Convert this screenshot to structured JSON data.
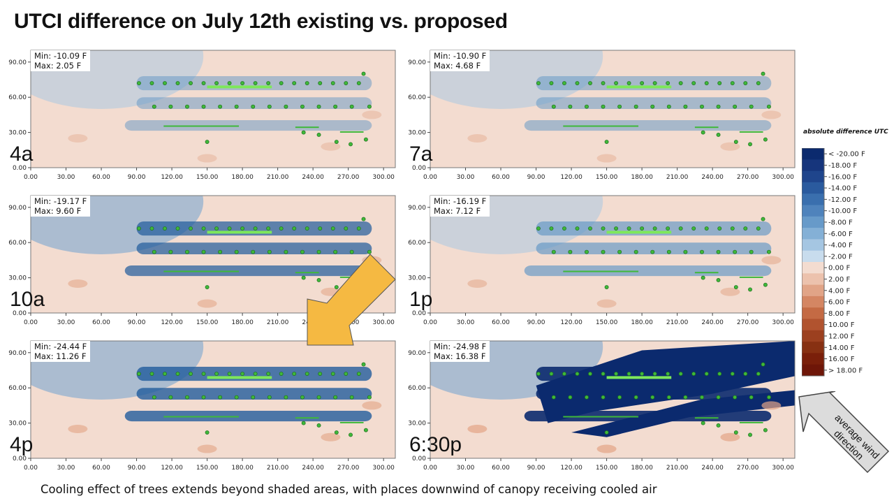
{
  "title": "UTCI difference on July 12th existing vs. proposed",
  "caption": "Cooling effect of trees extends beyond shaded areas, with places downwind of canopy receiving cooled air",
  "legend": {
    "title": "absolute difference UTC",
    "labels": [
      "< -20.00 F",
      "-18.00 F",
      "-16.00 F",
      "-14.00 F",
      "-12.00 F",
      "-10.00 F",
      "-8.00 F",
      "-6.00 F",
      "-4.00 F",
      "-2.00 F",
      "0.00 F",
      "2.00 F",
      "4.00 F",
      "6.00 F",
      "8.00 F",
      "10.00 F",
      "12.00 F",
      "14.00 F",
      "16.00 F",
      "> 18.00 F"
    ]
  },
  "wind_label": "average wind direction",
  "colors": {
    "cool_max": "#0b2a6e",
    "neutral": "#f3dcd0",
    "warm_max": "#7a1a0a",
    "tree": "#3fb83a",
    "tree_outline": "#1f6e1d",
    "arrow": "#f5b942",
    "wind_arrow": "#d9d9d9"
  },
  "chart_data": [
    {
      "type": "heatmap",
      "time_label": "4a",
      "min_label": "Min: -10.09 F",
      "max_label": "Max: 2.05 F",
      "xticks": [
        "0.00",
        "30.00",
        "60.00",
        "90.00",
        "120.00",
        "150.00",
        "180.00",
        "210.00",
        "240.00",
        "270.00",
        "300.00"
      ],
      "yticks": [
        "0.00",
        "30.00",
        "60.00",
        "90.00"
      ],
      "xlim": [
        0,
        310
      ],
      "ylim": [
        0,
        100
      ]
    },
    {
      "type": "heatmap",
      "time_label": "7a",
      "min_label": "Min: -10.90 F",
      "max_label": "Max: 4.68 F",
      "xticks": [
        "0.00",
        "30.00",
        "60.00",
        "90.00",
        "120.00",
        "150.00",
        "180.00",
        "210.00",
        "240.00",
        "270.00",
        "300.00"
      ],
      "yticks": [
        "0.00",
        "30.00",
        "60.00",
        "90.00"
      ],
      "xlim": [
        0,
        310
      ],
      "ylim": [
        0,
        100
      ]
    },
    {
      "type": "heatmap",
      "time_label": "10a",
      "min_label": "Min: -19.17 F",
      "max_label": "Max: 9.60 F",
      "xticks": [
        "0.00",
        "30.00",
        "60.00",
        "90.00",
        "120.00",
        "150.00",
        "180.00",
        "210.00",
        "240.00",
        "270.00",
        "300.00"
      ],
      "yticks": [
        "0.00",
        "30.00",
        "60.00",
        "90.00"
      ],
      "xlim": [
        0,
        310
      ],
      "ylim": [
        0,
        100
      ]
    },
    {
      "type": "heatmap",
      "time_label": "1p",
      "min_label": "Min: -16.19 F",
      "max_label": "Max: 7.12 F",
      "xticks": [
        "0.00",
        "30.00",
        "60.00",
        "90.00",
        "120.00",
        "150.00",
        "180.00",
        "210.00",
        "240.00",
        "270.00",
        "300.00"
      ],
      "yticks": [
        "0.00",
        "30.00",
        "60.00",
        "90.00"
      ],
      "xlim": [
        0,
        310
      ],
      "ylim": [
        0,
        100
      ]
    },
    {
      "type": "heatmap",
      "time_label": "4p",
      "min_label": "Min: -24.44 F",
      "max_label": "Max: 11.26 F",
      "xticks": [
        "0.00",
        "30.00",
        "60.00",
        "90.00",
        "120.00",
        "150.00",
        "180.00",
        "210.00",
        "240.00",
        "270.00",
        "300.00"
      ],
      "yticks": [
        "0.00",
        "30.00",
        "60.00",
        "90.00"
      ],
      "xlim": [
        0,
        310
      ],
      "ylim": [
        0,
        100
      ]
    },
    {
      "type": "heatmap",
      "time_label": "6:30p",
      "min_label": "Min: -24.98 F",
      "max_label": "Max: 16.38 F",
      "xticks": [
        "0.00",
        "30.00",
        "60.00",
        "90.00",
        "120.00",
        "150.00",
        "180.00",
        "210.00",
        "240.00",
        "270.00",
        "300.00"
      ],
      "yticks": [
        "0.00",
        "30.00",
        "60.00",
        "90.00"
      ],
      "xlim": [
        0,
        310
      ],
      "ylim": [
        0,
        100
      ]
    }
  ]
}
